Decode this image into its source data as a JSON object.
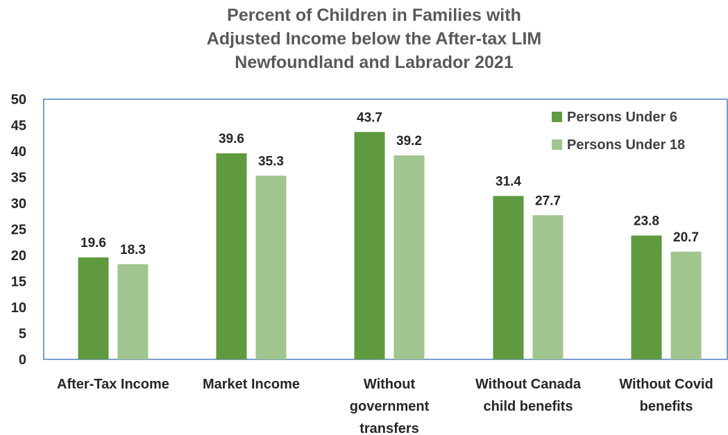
{
  "chart_data": {
    "type": "bar",
    "title": [
      "Percent of Children in Families with",
      "Adjusted Income below the After-tax LIM",
      "Newfoundland and Labrador 2021"
    ],
    "xlabel": "",
    "ylabel": "",
    "ylim": [
      0,
      50
    ],
    "yticks": [
      0,
      5,
      10,
      15,
      20,
      25,
      30,
      35,
      40,
      45,
      50
    ],
    "grid": false,
    "legend_position": "top-right",
    "categories": [
      [
        "After-Tax Income"
      ],
      [
        "Market Income"
      ],
      [
        "Without",
        "government",
        "transfers"
      ],
      [
        "Without Canada",
        "child benefits"
      ],
      [
        "Without Covid",
        "benefits"
      ]
    ],
    "series": [
      {
        "name": "Persons Under 6",
        "color": "#5f9a3f",
        "values": [
          19.6,
          39.6,
          43.7,
          31.4,
          23.8
        ]
      },
      {
        "name": "Persons Under 18",
        "color": "#a1c58e",
        "values": [
          18.3,
          35.3,
          39.2,
          27.7,
          20.7
        ]
      }
    ]
  }
}
